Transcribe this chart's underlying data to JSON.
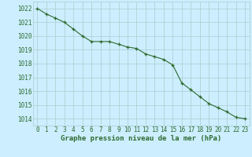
{
  "x": [
    0,
    1,
    2,
    3,
    4,
    5,
    6,
    7,
    8,
    9,
    10,
    11,
    12,
    13,
    14,
    15,
    16,
    17,
    18,
    19,
    20,
    21,
    22,
    23
  ],
  "y": [
    1022.0,
    1021.6,
    1021.3,
    1021.0,
    1020.5,
    1020.0,
    1019.6,
    1019.6,
    1019.6,
    1019.4,
    1019.2,
    1019.1,
    1018.7,
    1018.5,
    1018.3,
    1017.9,
    1016.6,
    1016.1,
    1015.6,
    1015.1,
    1014.8,
    1014.5,
    1014.1,
    1014.0
  ],
  "line_color": "#2d6a2d",
  "marker": "+",
  "marker_color": "#2d6a2d",
  "bg_color": "#cceeff",
  "grid_color": "#aacccc",
  "xlabel": "Graphe pression niveau de la mer (hPa)",
  "xlabel_color": "#2d6a2d",
  "tick_color": "#2d6a2d",
  "ylim": [
    1013.5,
    1022.5
  ],
  "yticks": [
    1014,
    1015,
    1016,
    1017,
    1018,
    1019,
    1020,
    1021,
    1022
  ],
  "xticks": [
    0,
    1,
    2,
    3,
    4,
    5,
    6,
    7,
    8,
    9,
    10,
    11,
    12,
    13,
    14,
    15,
    16,
    17,
    18,
    19,
    20,
    21,
    22,
    23
  ],
  "tick_fontsize": 5.5,
  "xlabel_fontsize": 6.5
}
